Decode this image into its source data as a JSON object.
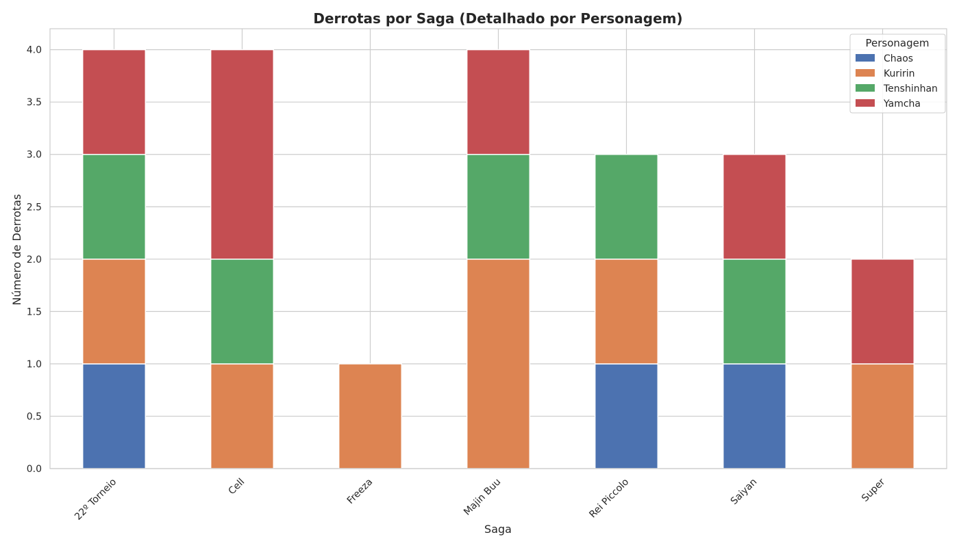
{
  "chart_data": {
    "type": "bar",
    "stacked": true,
    "title": "Derrotas por Saga (Detalhado por Personagem)",
    "xlabel": "Saga",
    "ylabel": "Número de Derrotas",
    "categories": [
      "22º Torneio",
      "Cell",
      "Freeza",
      "Majin Buu",
      "Rei Piccolo",
      "Saiyan",
      "Super"
    ],
    "series": [
      {
        "name": "Chaos",
        "color": "#4c72b0",
        "values": [
          1,
          0,
          0,
          0,
          1,
          1,
          0
        ]
      },
      {
        "name": "Kuririn",
        "color": "#dd8452",
        "values": [
          1,
          1,
          1,
          2,
          1,
          0,
          1
        ]
      },
      {
        "name": "Tenshinhan",
        "color": "#55a868",
        "values": [
          1,
          1,
          0,
          1,
          1,
          1,
          0
        ]
      },
      {
        "name": "Yamcha",
        "color": "#c44e52",
        "values": [
          1,
          2,
          0,
          1,
          0,
          1,
          1
        ]
      }
    ],
    "ylim": [
      0,
      4.2
    ],
    "yticks": [
      "0.0",
      "0.5",
      "1.0",
      "1.5",
      "2.0",
      "2.5",
      "3.0",
      "3.5",
      "4.0"
    ],
    "legend": {
      "title": "Personagem",
      "placement": "top-right"
    },
    "grid": true
  }
}
